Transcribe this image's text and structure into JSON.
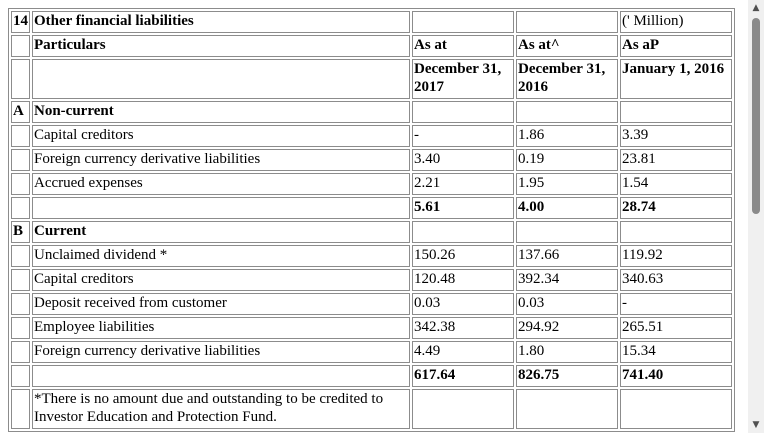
{
  "table": {
    "header": {
      "note_no": "14",
      "title": "Other financial liabilities",
      "unit": "(' Million)",
      "particulars": "Particulars",
      "col1_line1": "As at",
      "col2_line1": "As at^",
      "col3_line1": "As aP",
      "col1_date": "December 31, 2017",
      "col2_date": "December 31, 2016",
      "col3_date": "January 1, 2016"
    },
    "section_a": {
      "letter": "A",
      "label": "Non-current",
      "rows": [
        {
          "label": "Capital creditors",
          "v1": "-",
          "v2": "1.86",
          "v3": "3.39"
        },
        {
          "label": "Foreign currency derivative liabilities",
          "v1": "3.40",
          "v2": "0.19",
          "v3": "23.81"
        },
        {
          "label": "Accrued expenses",
          "v1": "2.21",
          "v2": "1.95",
          "v3": "1.54"
        }
      ],
      "total": {
        "v1": "5.61",
        "v2": "4.00",
        "v3": "28.74"
      }
    },
    "section_b": {
      "letter": "B",
      "label": "Current",
      "rows": [
        {
          "label": "Unclaimed dividend *",
          "v1": "150.26",
          "v2": "137.66",
          "v3": "119.92"
        },
        {
          "label": "Capital creditors",
          "v1": "120.48",
          "v2": "392.34",
          "v3": "340.63"
        },
        {
          "label": "Deposit received from customer",
          "v1": "0.03",
          "v2": "0.03",
          "v3": "-"
        },
        {
          "label": "Employee liabilities",
          "v1": "342.38",
          "v2": "294.92",
          "v3": "265.51"
        },
        {
          "label": "Foreign currency derivative liabilities",
          "v1": "4.49",
          "v2": "1.80",
          "v3": "15.34"
        }
      ],
      "total": {
        "v1": "617.64",
        "v2": "826.75",
        "v3": "741.40"
      }
    },
    "footnote": "*There is no amount due and outstanding to be credited to Investor Education and Protection Fund."
  },
  "scrollbar": {
    "up_icon": "triangle-up",
    "down_icon": "triangle-down"
  }
}
